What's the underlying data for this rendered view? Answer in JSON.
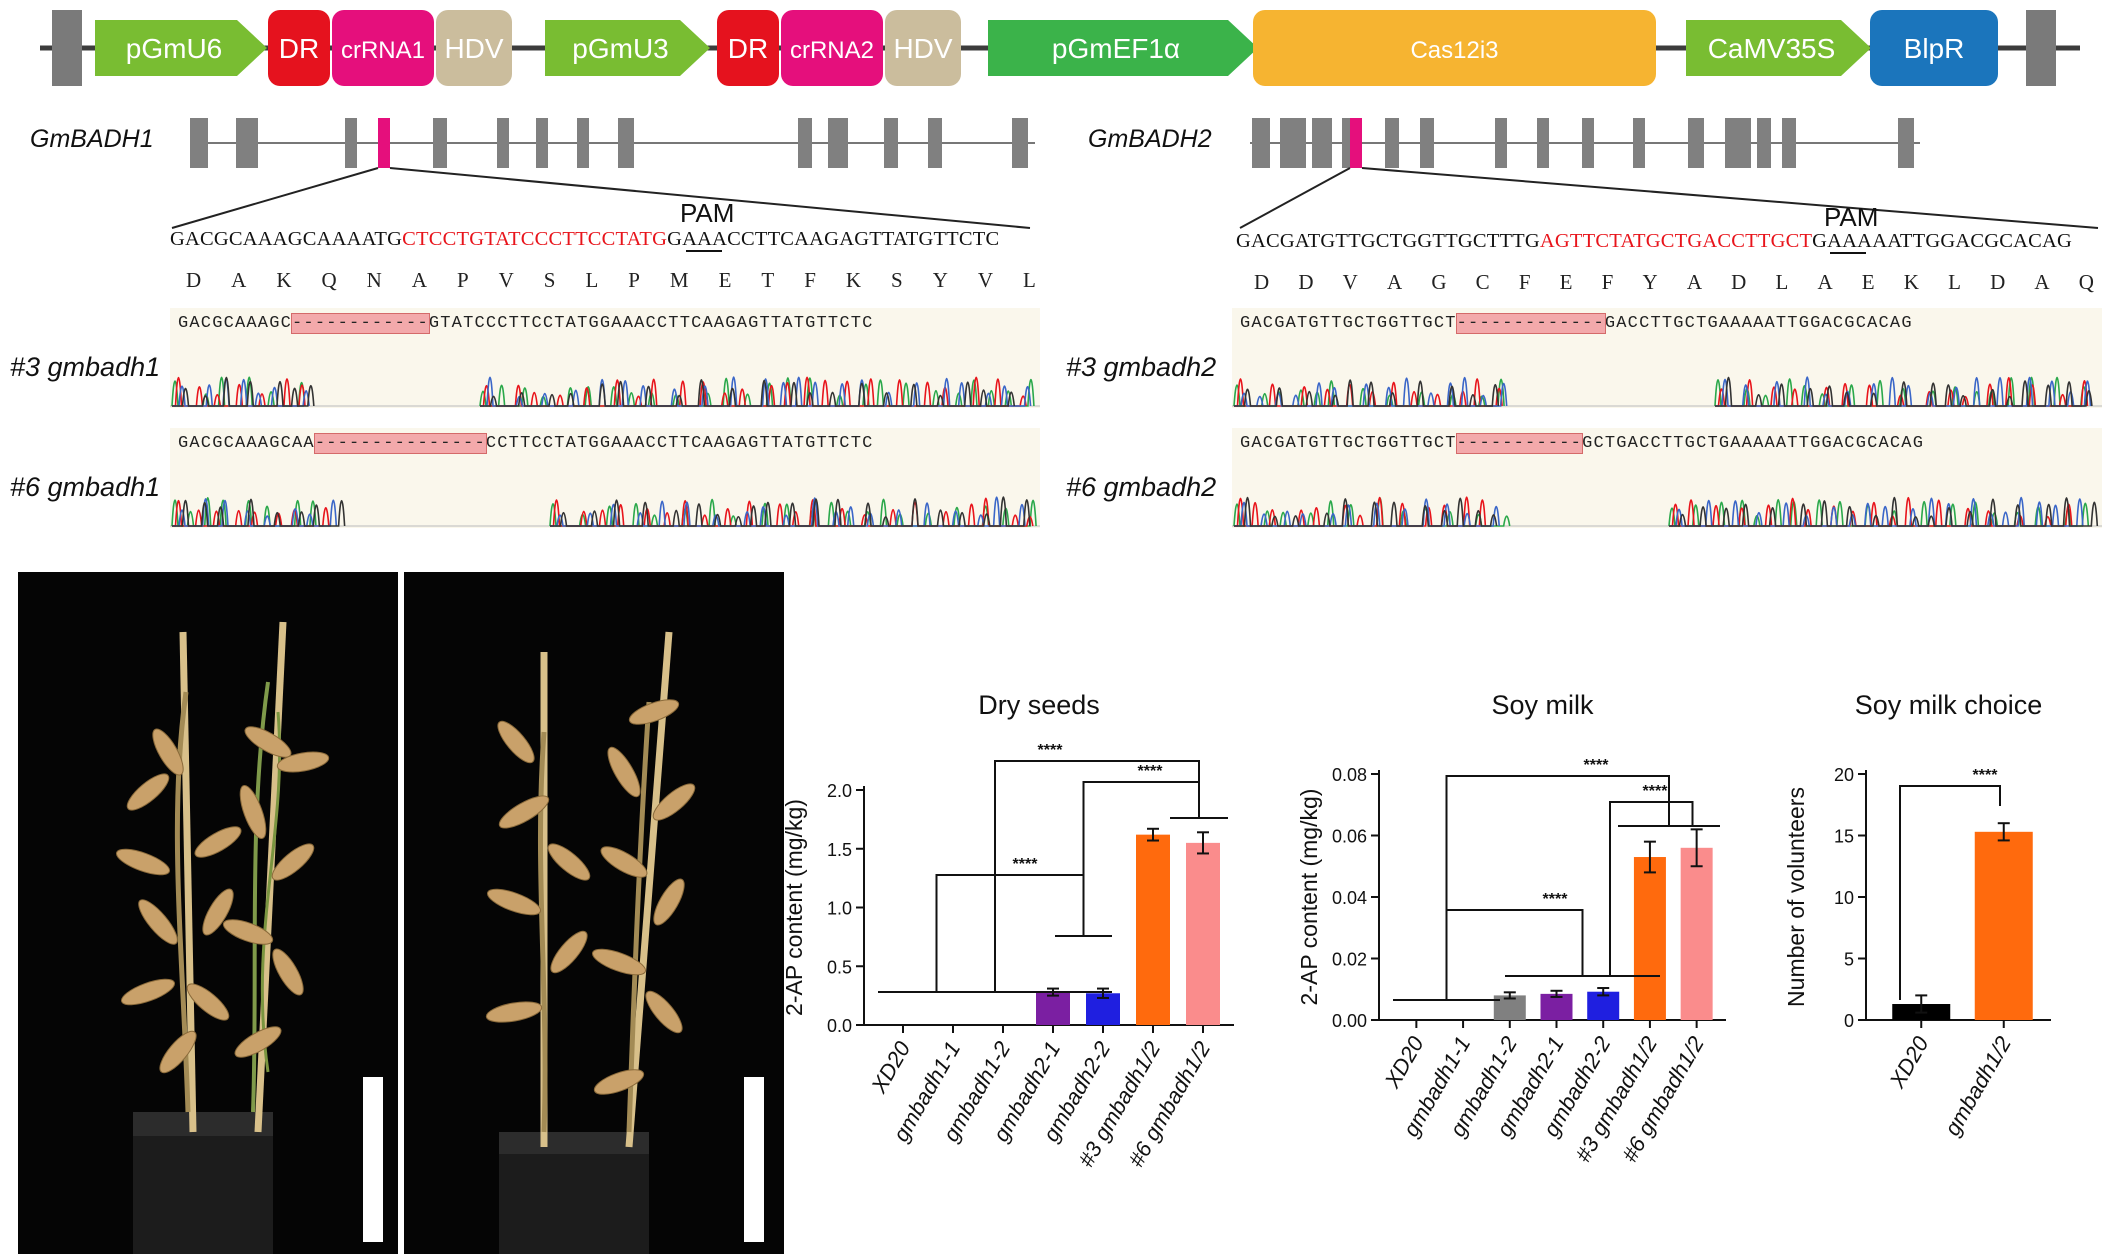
{
  "construct": {
    "elements": [
      {
        "label": "pGmU6",
        "kind": "arrow",
        "color": "#79bd32"
      },
      {
        "label": "DR",
        "kind": "box",
        "color": "#e5121e"
      },
      {
        "label": "crRNA1",
        "kind": "box",
        "color": "#e50f7c"
      },
      {
        "label": "HDV",
        "kind": "box",
        "color": "#cbbd9d"
      },
      {
        "label": "pGmU3",
        "kind": "arrow",
        "color": "#79bd32"
      },
      {
        "label": "DR",
        "kind": "box",
        "color": "#e5121e"
      },
      {
        "label": "crRNA2",
        "kind": "box",
        "color": "#e50f7c"
      },
      {
        "label": "HDV",
        "kind": "box",
        "color": "#cbbd9d"
      },
      {
        "label": "pGmEF1α",
        "kind": "arrow",
        "color": "#3bb34a"
      },
      {
        "label": "Cas12i3",
        "kind": "box",
        "color": "#f6b431"
      },
      {
        "label": "CaMV35S",
        "kind": "arrow",
        "color": "#79bd32"
      },
      {
        "label": "BlpR",
        "kind": "box",
        "color": "#1b75bc"
      }
    ]
  },
  "genes": {
    "left": {
      "name": "GmBADH1",
      "pam": "PAM",
      "ref_pre": "GACGCAAAGCAAAATG",
      "ref_target": "CTCCTGTATCCCTTCCTATG",
      "ref_post": "GAAACCTTCAAGAGTTATGTTCTC",
      "aa": [
        "D",
        "A",
        "K",
        "Q",
        "N",
        "A",
        "P",
        "V",
        "S",
        "L",
        "P",
        "M",
        "E",
        "T",
        "F",
        "K",
        "S",
        "Y",
        "V",
        "L"
      ],
      "mutants": [
        {
          "label": "#3 gmbadh1",
          "pre": "GACGCAAAGC",
          "gap": "------------",
          "post": "GTATCCCTTCCTATGGAAACCTTCAAGAGTTATGTTCTC"
        },
        {
          "label": "#6 gmbadh1",
          "pre": "GACGCAAAGCAA",
          "gap": "---------------",
          "post": "CCTTCCTATGGAAACCTTCAAGAGTTATGTTCTC"
        }
      ]
    },
    "right": {
      "name": "GmBADH2",
      "pam": "PAM",
      "ref_pre": "GACGATGTTGCTGGTTGCTTTG",
      "ref_target": "AGTTCTATGCTGACCTTGCT",
      "ref_post": "GAAAAATTGGACGCACAG",
      "aa": [
        "D",
        "D",
        "V",
        "A",
        "G",
        "C",
        "F",
        "E",
        "F",
        "Y",
        "A",
        "D",
        "L",
        "A",
        "E",
        "K",
        "L",
        "D",
        "A",
        "Q"
      ],
      "mutants": [
        {
          "label": "#3 gmbadh2",
          "pre": "GACGATGTTGCTGGTTGCT",
          "gap": "-------------",
          "post": "GACCTTGCTGAAAAATTGGACGCACAG"
        },
        {
          "label": "#6 gmbadh2",
          "pre": "GACGATGTTGCTGGTTGCT",
          "gap": "-----------",
          "post": "GCTGACCTTGCTGAAAAATTGGACGCACAG"
        }
      ]
    }
  },
  "colors": {
    "target": "#e8141b",
    "gap": "#f3a9ab",
    "chrom_bg": "#faf7ec"
  },
  "chart_data": [
    {
      "type": "bar",
      "title": "Dry seeds",
      "ylabel": "2-AP content (mg/kg)",
      "ylim": [
        0,
        2.0
      ],
      "yticks": [
        "0.0",
        "0.5",
        "1.0",
        "1.5",
        "2.0"
      ],
      "categories": [
        "XD20",
        "gmbadh1-1",
        "gmbadh1-2",
        "gmbadh2-1",
        "gmbadh2-2",
        "#3 gmbadh1/2",
        "#6 gmbadh1/2"
      ],
      "values": [
        0,
        0,
        0,
        0.28,
        0.27,
        1.62,
        1.55
      ],
      "errors": [
        0,
        0,
        0,
        0.03,
        0.04,
        0.05,
        0.09
      ],
      "colors": [
        "#000000",
        "#808080",
        "#808080",
        "#7b1fa2",
        "#1f1fe0",
        "#ff6a0d",
        "#fa8c8c"
      ],
      "significance": [
        "****",
        "****",
        "****"
      ]
    },
    {
      "type": "bar",
      "title": "Soy milk",
      "ylabel": "2-AP content (mg/kg)",
      "ylim": [
        0,
        0.08
      ],
      "yticks": [
        "0.00",
        "0.02",
        "0.04",
        "0.06",
        "0.08"
      ],
      "categories": [
        "XD20",
        "gmbadh1-1",
        "gmbadh1-2",
        "gmbadh2-1",
        "gmbadh2-2",
        "#3 gmbadh1/2",
        "#6 gmbadh1/2"
      ],
      "values": [
        0,
        0,
        0.008,
        0.0085,
        0.0092,
        0.053,
        0.056
      ],
      "errors": [
        0,
        0,
        0.001,
        0.001,
        0.0012,
        0.005,
        0.006
      ],
      "colors": [
        "#000000",
        "#808080",
        "#808080",
        "#7b1fa2",
        "#1f1fe0",
        "#ff6a0d",
        "#fa8c8c"
      ],
      "significance": [
        "****",
        "****",
        "****"
      ]
    },
    {
      "type": "bar",
      "title": "Soy milk choice",
      "ylabel": "Number of volunteers",
      "ylim": [
        0,
        20
      ],
      "yticks": [
        "0",
        "5",
        "10",
        "15",
        "20"
      ],
      "categories": [
        "XD20",
        "gmbadh1/2"
      ],
      "values": [
        1.3,
        15.3
      ],
      "errors": [
        0.7,
        0.7
      ],
      "colors": [
        "#000000",
        "#ff6a0d"
      ],
      "significance": [
        "****"
      ]
    }
  ]
}
